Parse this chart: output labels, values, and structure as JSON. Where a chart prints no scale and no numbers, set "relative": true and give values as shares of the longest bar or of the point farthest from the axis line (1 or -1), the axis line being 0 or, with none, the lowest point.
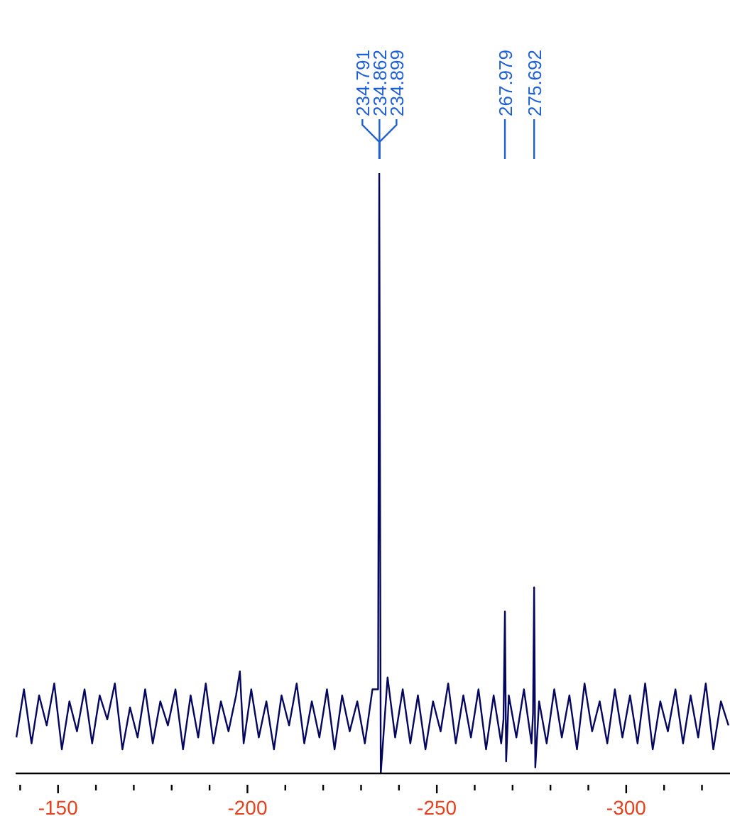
{
  "chart_data": {
    "type": "line",
    "relative": true,
    "color": "#05065e",
    "xlim": [
      -138.8,
      -327.4
    ],
    "xticks": [
      {
        "value": -140,
        "label": null
      },
      -150,
      {
        "value": -160,
        "label": null
      },
      {
        "value": -170,
        "label": null
      },
      {
        "value": -180,
        "label": null
      },
      {
        "value": -190,
        "label": null
      },
      -200,
      {
        "value": -210,
        "label": null
      },
      {
        "value": -220,
        "label": null
      },
      {
        "value": -230,
        "label": null
      },
      {
        "value": -240,
        "label": null
      },
      -250,
      {
        "value": -260,
        "label": null
      },
      {
        "value": -270,
        "label": null
      },
      {
        "value": -280,
        "label": null
      },
      {
        "value": -290,
        "label": null
      },
      -300,
      {
        "value": -310,
        "label": null
      },
      {
        "value": -320,
        "label": null
      }
    ],
    "x": [
      -139,
      -141,
      -143,
      -145,
      -147,
      -149,
      -151,
      -153,
      -155,
      -157,
      -159,
      -161,
      -163,
      -165,
      -167,
      -169,
      -171,
      -173,
      -175,
      -177,
      -179,
      -181,
      -183,
      -185,
      -187,
      -189,
      -191,
      -193,
      -195,
      -197,
      -198,
      -199,
      -201,
      -203,
      -205,
      -207,
      -209,
      -211,
      -213,
      -215,
      -217,
      -219,
      -221,
      -223,
      -225,
      -227,
      -229,
      -231,
      -233,
      -234.5,
      -234.8,
      -235.2,
      -237,
      -239,
      -241,
      -243,
      -245,
      -247,
      -249,
      -251,
      -253,
      -255,
      -257,
      -259,
      -261,
      -263,
      -265,
      -267,
      -267.6,
      -267.98,
      -268.3,
      -269,
      -271,
      -273,
      -275,
      -275.4,
      -275.69,
      -276.0,
      -277,
      -279,
      -281,
      -283,
      -285,
      -287,
      -289,
      -291,
      -293,
      -295,
      -297,
      -299,
      -301,
      -303,
      -305,
      -307,
      -309,
      -311,
      -313,
      -315,
      -317,
      -319,
      -321,
      -323,
      -325,
      -327
    ],
    "values": [
      0.06,
      0.14,
      0.05,
      0.13,
      0.08,
      0.15,
      0.04,
      0.12,
      0.07,
      0.14,
      0.05,
      0.13,
      0.09,
      0.15,
      0.04,
      0.11,
      0.06,
      0.14,
      0.05,
      0.12,
      0.08,
      0.14,
      0.04,
      0.13,
      0.06,
      0.15,
      0.05,
      0.12,
      0.07,
      0.13,
      0.17,
      0.05,
      0.14,
      0.06,
      0.12,
      0.04,
      0.13,
      0.08,
      0.15,
      0.05,
      0.12,
      0.06,
      0.14,
      0.04,
      0.13,
      0.07,
      0.12,
      0.05,
      0.14,
      0.14,
      1,
      0,
      0.16,
      0.06,
      0.14,
      0.05,
      0.13,
      0.04,
      0.12,
      0.07,
      0.15,
      0.05,
      0.13,
      0.06,
      0.14,
      0.04,
      0.13,
      0.05,
      0.09,
      0.27,
      0.02,
      0.13,
      0.06,
      0.14,
      0.05,
      0.1,
      0.31,
      0.01,
      0.12,
      0.05,
      0.14,
      0.06,
      0.13,
      0.04,
      0.15,
      0.07,
      0.12,
      0.05,
      0.14,
      0.06,
      0.13,
      0.05,
      0.15,
      0.04,
      0.12,
      0.07,
      0.14,
      0.05,
      0.13,
      0.06,
      0.15,
      0.04,
      0.12,
      0.08
    ],
    "annotations": [
      {
        "text": "234.791",
        "x": -234.791
      },
      {
        "text": "234.862",
        "x": -234.862
      },
      {
        "text": "234.899",
        "x": -234.899
      },
      {
        "text": "267.979",
        "x": -267.979
      },
      {
        "text": "275.692",
        "x": -275.692
      }
    ]
  }
}
